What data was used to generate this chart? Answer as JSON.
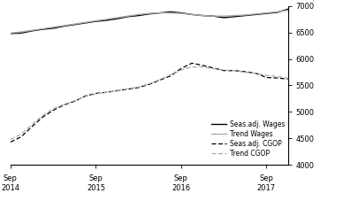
{
  "ylim": [
    4000,
    7000
  ],
  "yticks": [
    4000,
    4500,
    5000,
    5500,
    6000,
    6500,
    7000
  ],
  "xlim": [
    0,
    13
  ],
  "xtick_positions": [
    0,
    4,
    8,
    12
  ],
  "xtick_labels_line1": [
    "Sep",
    "Sep",
    "Sep",
    "Sep"
  ],
  "xtick_labels_line2": [
    "2014",
    "2015",
    "2016",
    "2017"
  ],
  "legend_entries": [
    "Seas.adj. Wages",
    "Trend Wages",
    "Seas.adj. CGOP",
    "Trend CGOP"
  ],
  "seas_wages_x": [
    0,
    0.5,
    1,
    1.5,
    2,
    2.5,
    3,
    3.5,
    4,
    4.5,
    5,
    5.5,
    6,
    6.5,
    7,
    7.5,
    8,
    8.5,
    9,
    9.5,
    10,
    10.5,
    11,
    11.5,
    12,
    12.5,
    13
  ],
  "seas_wages_y": [
    6480,
    6490,
    6530,
    6560,
    6580,
    6620,
    6650,
    6680,
    6710,
    6730,
    6760,
    6800,
    6820,
    6850,
    6870,
    6890,
    6870,
    6840,
    6820,
    6810,
    6780,
    6800,
    6820,
    6840,
    6860,
    6880,
    6940
  ],
  "trend_wages_x": [
    0,
    0.5,
    1,
    1.5,
    2,
    2.5,
    3,
    3.5,
    4,
    4.5,
    5,
    5.5,
    6,
    6.5,
    7,
    7.5,
    8,
    8.5,
    9,
    9.5,
    10,
    10.5,
    11,
    11.5,
    12,
    12.5,
    13
  ],
  "trend_wages_y": [
    6490,
    6510,
    6540,
    6570,
    6600,
    6630,
    6660,
    6690,
    6720,
    6750,
    6780,
    6810,
    6840,
    6860,
    6870,
    6870,
    6860,
    6840,
    6820,
    6810,
    6810,
    6820,
    6830,
    6850,
    6870,
    6890,
    6920
  ],
  "seas_cgop_x": [
    0,
    0.5,
    1,
    1.5,
    2,
    2.5,
    3,
    3.5,
    4,
    4.5,
    5,
    5.5,
    6,
    6.5,
    7,
    7.5,
    8,
    8.5,
    9,
    9.5,
    10,
    10.5,
    11,
    11.5,
    12,
    12.5,
    13
  ],
  "seas_cgop_y": [
    4430,
    4530,
    4720,
    4900,
    5030,
    5130,
    5200,
    5300,
    5350,
    5370,
    5400,
    5430,
    5460,
    5520,
    5600,
    5680,
    5820,
    5920,
    5880,
    5830,
    5780,
    5780,
    5760,
    5730,
    5650,
    5640,
    5620
  ],
  "trend_cgop_x": [
    0,
    0.5,
    1,
    1.5,
    2,
    2.5,
    3,
    3.5,
    4,
    4.5,
    5,
    5.5,
    6,
    6.5,
    7,
    7.5,
    8,
    8.5,
    9,
    9.5,
    10,
    10.5,
    11,
    11.5,
    12,
    12.5,
    13
  ],
  "trend_cgop_y": [
    4480,
    4580,
    4760,
    4930,
    5060,
    5140,
    5210,
    5290,
    5340,
    5370,
    5400,
    5440,
    5470,
    5530,
    5610,
    5700,
    5790,
    5850,
    5850,
    5820,
    5790,
    5780,
    5750,
    5730,
    5690,
    5670,
    5640
  ],
  "color_black": "#000000",
  "color_gray": "#aaaaaa",
  "background_color": "#ffffff"
}
